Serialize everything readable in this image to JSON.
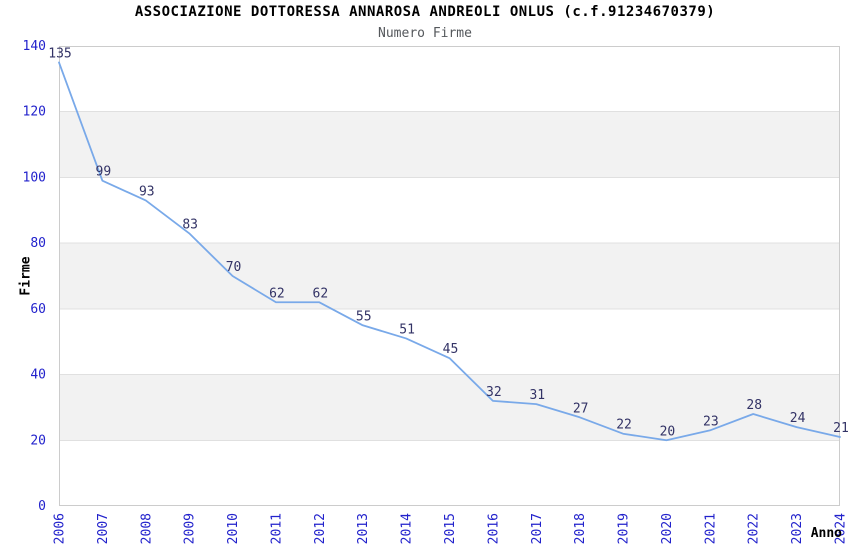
{
  "chart_data": {
    "type": "line",
    "title": "ASSOCIAZIONE DOTTORESSA ANNAROSA ANDREOLI ONLUS (c.f.91234670379)",
    "subtitle": "Numero Firme",
    "xlabel": "Anno",
    "ylabel": "Firme",
    "x": [
      2006,
      2007,
      2008,
      2009,
      2010,
      2011,
      2012,
      2013,
      2014,
      2015,
      2016,
      2017,
      2018,
      2019,
      2020,
      2021,
      2022,
      2023,
      2024
    ],
    "series": [
      {
        "name": "Numero Firme",
        "values": [
          135,
          99,
          93,
          83,
          70,
          62,
          62,
          55,
          51,
          45,
          32,
          31,
          27,
          22,
          20,
          23,
          28,
          24,
          21
        ]
      }
    ],
    "ylim": [
      0,
      140
    ],
    "yticks": [
      0,
      20,
      40,
      60,
      80,
      100,
      120,
      140
    ],
    "grid": "horizontal, alternating shaded bands",
    "legend_position": "none",
    "point_labels_visible": true,
    "colors": {
      "line": "#79a9e9",
      "tick_label": "#2222cc",
      "data_label": "#333366",
      "band": "#f2f2f2",
      "gridline": "#e0e0e0",
      "plot_border": "#cccccc",
      "title": "#000000",
      "subtitle": "#55585c",
      "axis_title": "#000000",
      "background": "#ffffff"
    }
  }
}
